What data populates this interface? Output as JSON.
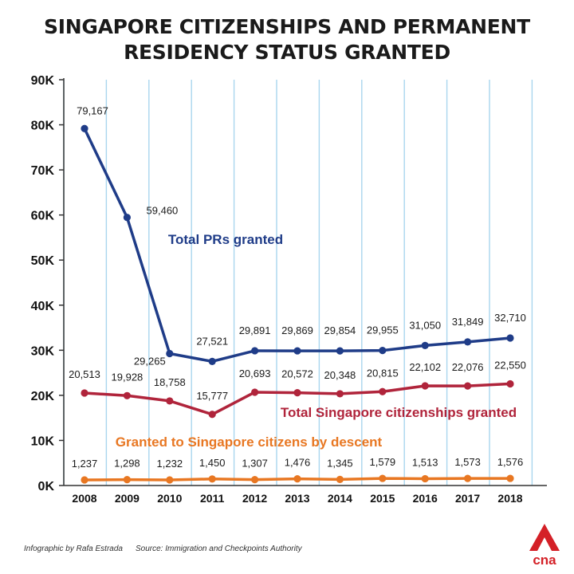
{
  "title_line1": "SINGAPORE CITIZENSHIPS AND PERMANENT",
  "title_line2": "RESIDENCY STATUS GRANTED",
  "footer": {
    "credit": "Infographic by Rafa Estrada",
    "source": "Source: Immigration and Checkpoints Authority"
  },
  "logo": {
    "text": "cna",
    "icon": "cna-logo-icon",
    "color": "#d42027"
  },
  "colors": {
    "prs": "#1f3c88",
    "citizenships": "#b0243b",
    "descent": "#e87722",
    "grid": "#a9d6ee",
    "axis": "#333333"
  },
  "chart_data": {
    "type": "line",
    "categories": [
      "2008",
      "2009",
      "2010",
      "2011",
      "2012",
      "2013",
      "2014",
      "2015",
      "2016",
      "2017",
      "2018"
    ],
    "ylim": [
      0,
      90000
    ],
    "yticks": [
      0,
      10000,
      20000,
      30000,
      40000,
      50000,
      60000,
      70000,
      80000,
      90000
    ],
    "ytick_labels": [
      "0K",
      "10K",
      "20K",
      "30K",
      "40K",
      "50K",
      "60K",
      "70K",
      "80K",
      "90K"
    ],
    "grid": "vertical",
    "series": [
      {
        "name": "Total PRs granted",
        "color_key": "prs",
        "values": [
          79167,
          59460,
          29265,
          27521,
          29891,
          29869,
          29854,
          29955,
          31050,
          31849,
          32710
        ],
        "labels": [
          "79,167",
          "59,460",
          "29,265",
          "27,521",
          "29,891",
          "29,869",
          "29,854",
          "29,955",
          "31,050",
          "31,849",
          "32,710"
        ]
      },
      {
        "name": "Total Singapore citizenships granted",
        "color_key": "citizenships",
        "values": [
          20513,
          19928,
          18758,
          15777,
          20693,
          20572,
          20348,
          20815,
          22102,
          22076,
          22550
        ],
        "labels": [
          "20,513",
          "19,928",
          "18,758",
          "15,777",
          "20,693",
          "20,572",
          "20,348",
          "20,815",
          "22,102",
          "22,076",
          "22,550"
        ]
      },
      {
        "name": "Granted to Singapore citizens by descent",
        "color_key": "descent",
        "values": [
          1237,
          1298,
          1232,
          1450,
          1307,
          1476,
          1345,
          1579,
          1513,
          1573,
          1576
        ],
        "labels": [
          "1,237",
          "1,298",
          "1,232",
          "1,450",
          "1,307",
          "1,476",
          "1,345",
          "1,579",
          "1,513",
          "1,573",
          "1,576"
        ]
      }
    ]
  }
}
